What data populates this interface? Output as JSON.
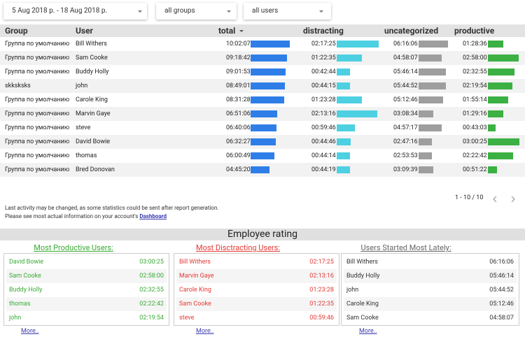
{
  "filters": [
    "5 Aug 2018 р. - 18 Aug 2018 р.",
    "all groups",
    "all users"
  ],
  "table": {
    "headers": [
      "Group",
      "User",
      "total",
      "distracting",
      "uncategorized",
      "productive"
    ],
    "rows": [
      [
        "Группа по умолчанию",
        "Bill Withers",
        "10:02:07",
        "02:17:25",
        "06:16:06",
        "01:28:36"
      ],
      [
        "Группа по умолчанию",
        "Sam Cooke",
        "09:18:42",
        "01:22:35",
        "04:58:07",
        "02:58:00"
      ],
      [
        "Группа по умолчанию",
        "Buddy Holly",
        "09:01:53",
        "00:42:44",
        "05:46:14",
        "02:32:55"
      ],
      [
        "skksksks",
        "john",
        "08:49:01",
        "00:44:15",
        "05:44:52",
        "02:19:54"
      ],
      [
        "Группа по умолчанию",
        "Carole King",
        "08:31:28",
        "01:23:28",
        "05:12:46",
        "01:55:14"
      ],
      [
        "Группа по умолчанию",
        "Marvin Gaye",
        "06:51:06",
        "02:13:16",
        "03:08:34",
        "01:29:16"
      ],
      [
        "Группа по умолчанию",
        "steve",
        "06:40:06",
        "00:59:46",
        "04:57:17",
        "00:43:03"
      ],
      [
        "Группа по умолчанию",
        "David Bowie",
        "06:32:27",
        "00:44:46",
        "02:47:16",
        "03:00:25"
      ],
      [
        "Группа по умолчанию",
        "thomas",
        "06:00:49",
        "00:44:14",
        "02:53:53",
        "02:22:42"
      ],
      [
        "Группа по умолчанию",
        "Bred Donovan",
        "04:45:20",
        "00:44:19",
        "03:09:39",
        "00:51:22"
      ]
    ]
  },
  "pagination": "1 - 10 / 10",
  "note": {
    "line1": "Last activity may be changed, as some statistics could be sent after report generation.",
    "line2": "Please see most actual information on your account's ",
    "link": "Dashboard"
  },
  "rating": {
    "title": "Employee rating",
    "panels": [
      {
        "title": "Most Productive Users:",
        "rows": [
          [
            "David Bowie",
            "03:00:25"
          ],
          [
            "Sam Cooke",
            "02:58:00"
          ],
          [
            "Buddy Holly",
            "02:32:55"
          ],
          [
            "thomas",
            "02:22:42"
          ],
          [
            "john",
            "02:19:54"
          ]
        ],
        "more": "More.."
      },
      {
        "title": "Most Disctracting Users:",
        "rows": [
          [
            "Bill Withers",
            "02:17:25"
          ],
          [
            "Marvin Gaye",
            "02:13:16"
          ],
          [
            "Carole King",
            "01:23:28"
          ],
          [
            "Sam Cooke",
            "01:22:35"
          ],
          [
            "steve",
            "00:59:46"
          ]
        ],
        "more": "More.."
      },
      {
        "title": "Users Started Most Lately:",
        "rows": [
          [
            "Bill Withers",
            "06:16:06"
          ],
          [
            "Buddy Holly",
            "05:46:14"
          ],
          [
            "john",
            "05:44:52"
          ],
          [
            "Carole King",
            "05:12:46"
          ],
          [
            "Sam Cooke",
            "04:58:07"
          ]
        ],
        "more": "More.."
      }
    ]
  }
}
